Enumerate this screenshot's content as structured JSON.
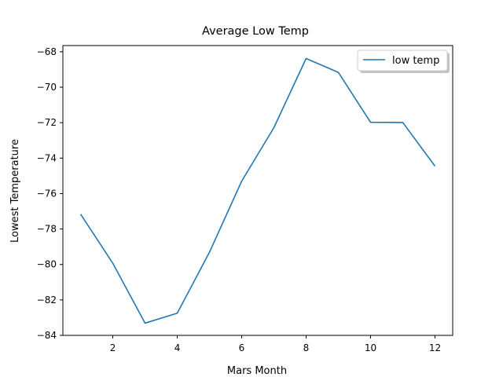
{
  "chart_data": {
    "type": "line",
    "title": "Average Low Temp",
    "xlabel": "Mars Month",
    "ylabel": "Lowest Temperature",
    "xlim": [
      0.45,
      12.55
    ],
    "ylim": [
      -84,
      -67.65
    ],
    "xticks": [
      2,
      4,
      6,
      8,
      10,
      12
    ],
    "yticks": [
      -84,
      -82,
      -80,
      -78,
      -76,
      -74,
      -72,
      -70,
      -68
    ],
    "grid": false,
    "legend_position": "top-right",
    "series": [
      {
        "name": "low temp",
        "color": "#1f77b4",
        "x": [
          1,
          2,
          3,
          4,
          5,
          6,
          7,
          8,
          9,
          10,
          11,
          12
        ],
        "y": [
          -77.16,
          -79.93,
          -83.31,
          -82.75,
          -79.31,
          -75.3,
          -72.28,
          -68.38,
          -69.16,
          -71.98,
          -71.99,
          -74.45
        ]
      }
    ]
  }
}
